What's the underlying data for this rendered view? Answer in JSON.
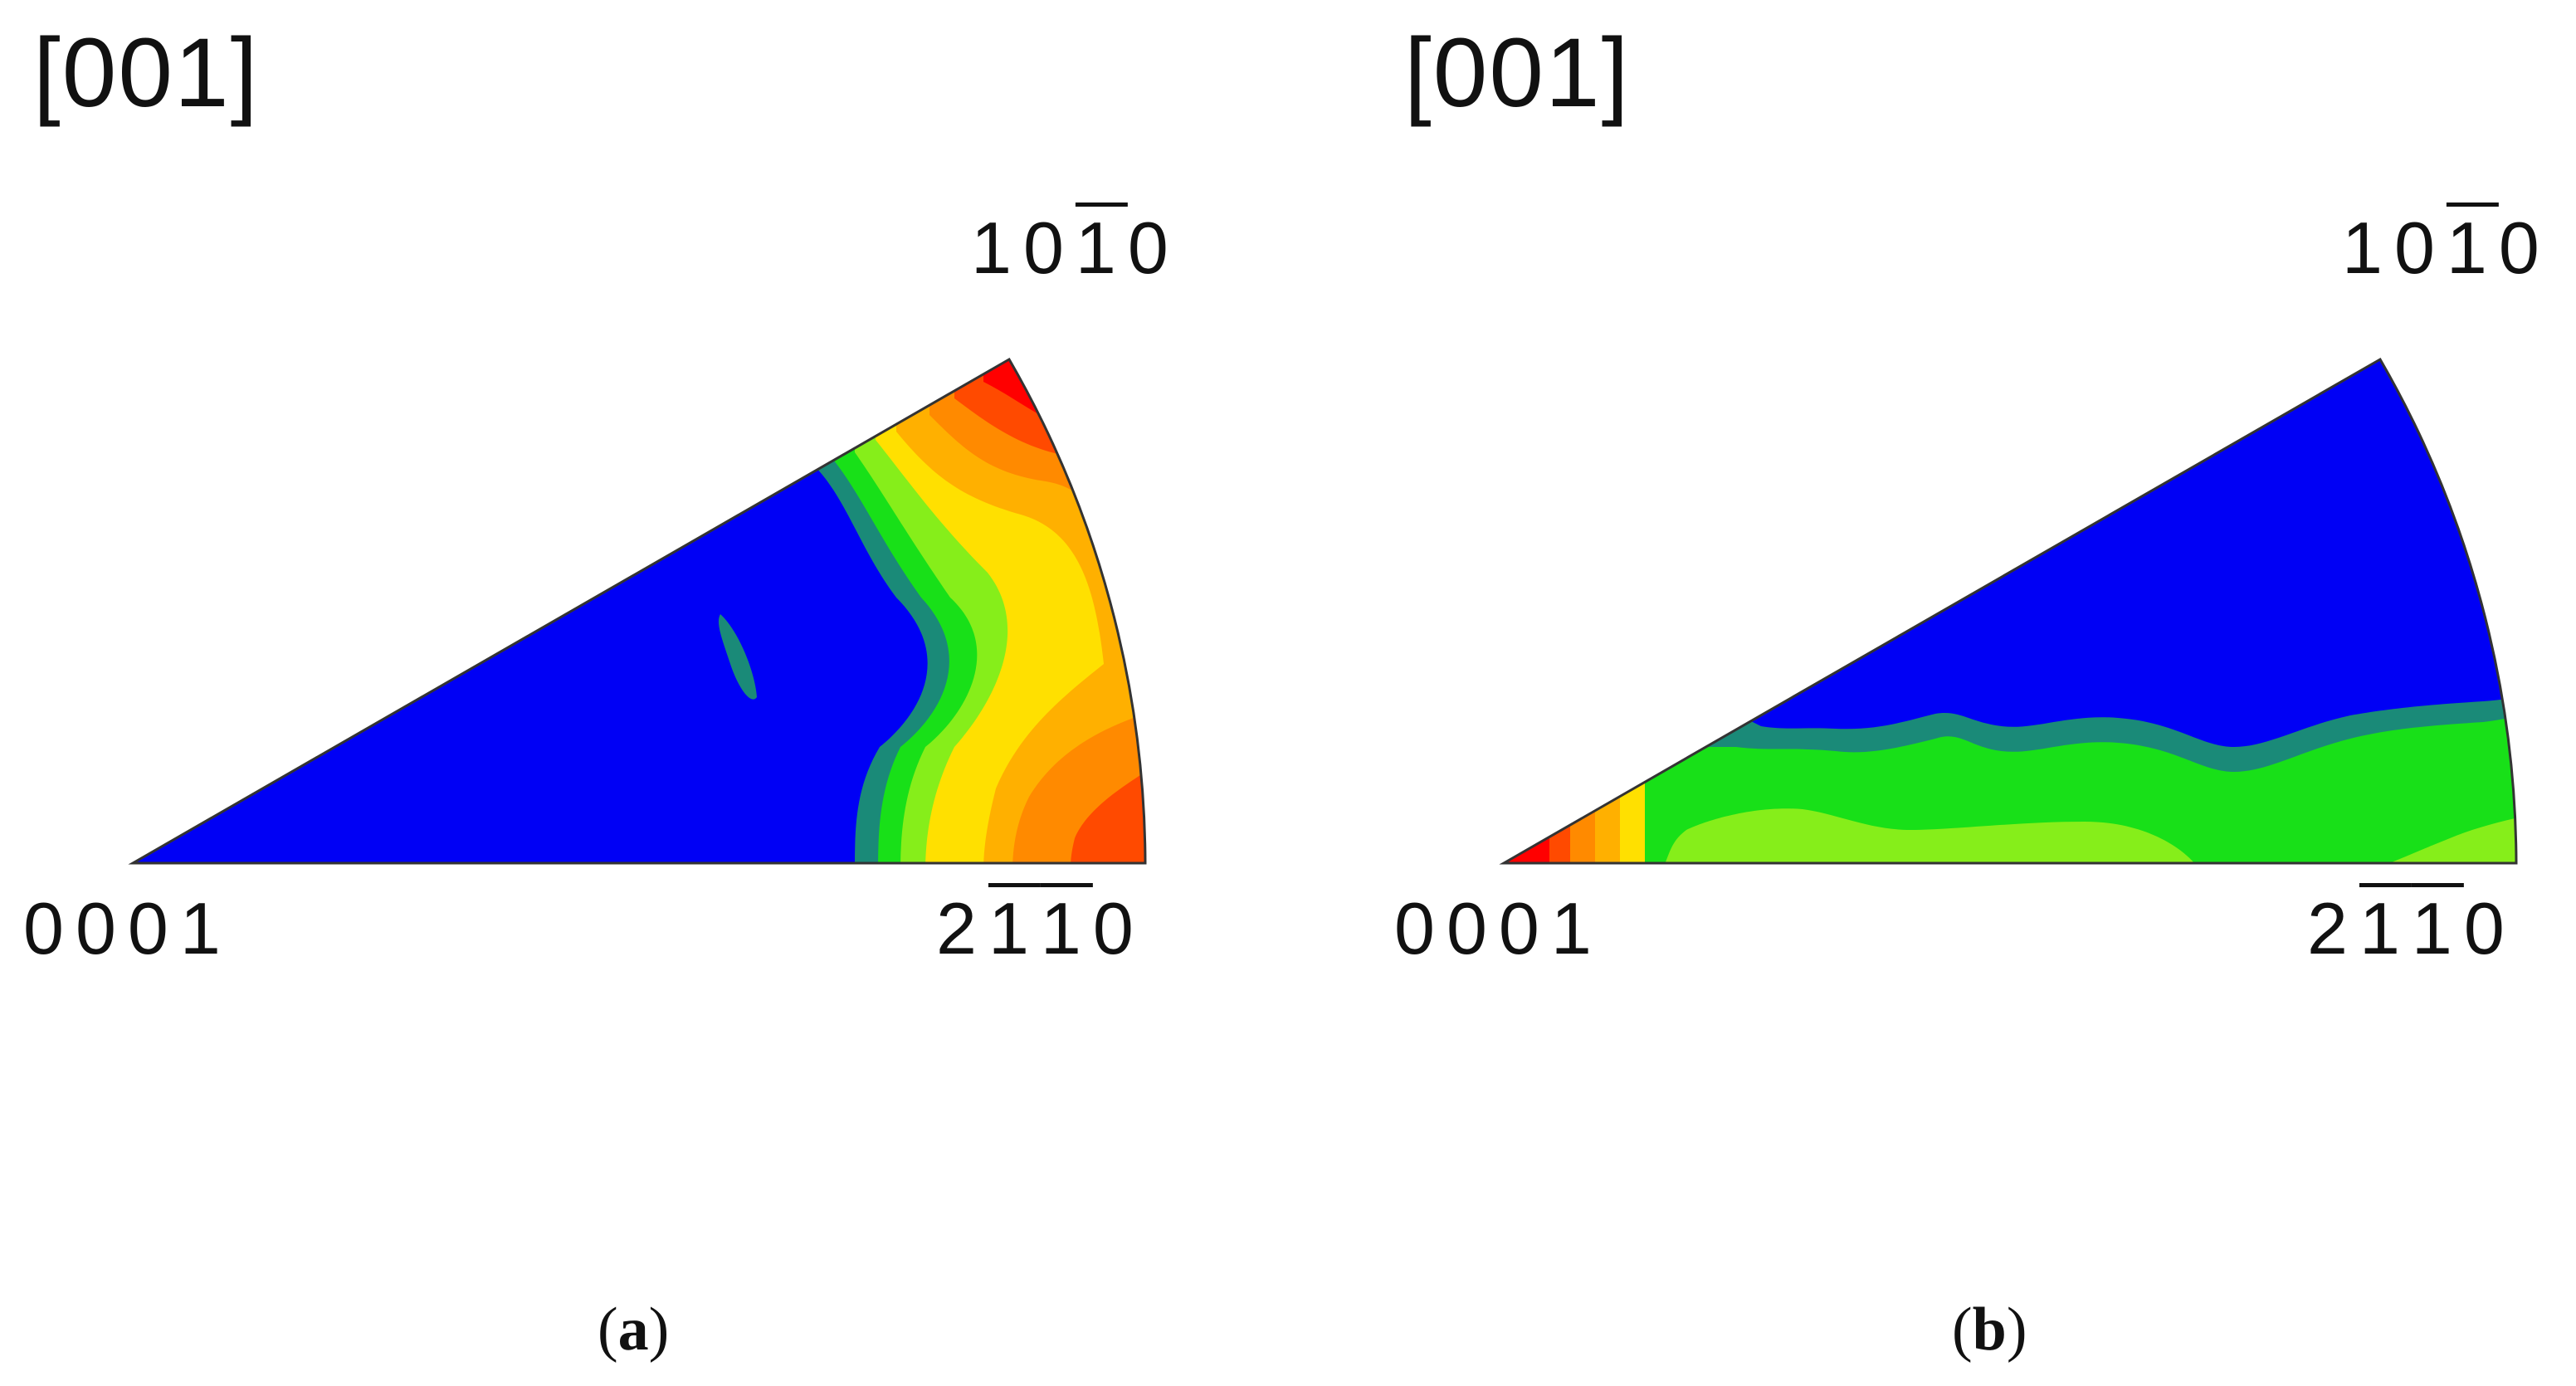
{
  "panels": [
    {
      "id": "a",
      "direction_label": "[001]",
      "caption_letter": "a",
      "poles": {
        "top_right": [
          {
            "d": "1",
            "bar": false
          },
          {
            "d": "0",
            "bar": false
          },
          {
            "d": "1",
            "bar": true
          },
          {
            "d": "0",
            "bar": false
          }
        ],
        "bottom_left": [
          {
            "d": "0",
            "bar": false
          },
          {
            "d": "0",
            "bar": false
          },
          {
            "d": "0",
            "bar": false
          },
          {
            "d": "1",
            "bar": false
          }
        ],
        "bottom_right": [
          {
            "d": "2",
            "bar": false
          },
          {
            "d": "1",
            "bar": true
          },
          {
            "d": "1",
            "bar": true
          },
          {
            "d": "0",
            "bar": false
          }
        ]
      }
    },
    {
      "id": "b",
      "direction_label": "[001]",
      "caption_letter": "b",
      "poles": {
        "top_right": [
          {
            "d": "1",
            "bar": false
          },
          {
            "d": "0",
            "bar": false
          },
          {
            "d": "1",
            "bar": true
          },
          {
            "d": "0",
            "bar": false
          }
        ],
        "bottom_left": [
          {
            "d": "0",
            "bar": false
          },
          {
            "d": "0",
            "bar": false
          },
          {
            "d": "0",
            "bar": false
          },
          {
            "d": "1",
            "bar": false
          }
        ],
        "bottom_right": [
          {
            "d": "2",
            "bar": false
          },
          {
            "d": "1",
            "bar": true
          },
          {
            "d": "1",
            "bar": true
          },
          {
            "d": "0",
            "bar": false
          }
        ]
      }
    }
  ],
  "colors": {
    "blue": "#0000f5",
    "teal": "#1a8a78",
    "green": "#18e018",
    "lime": "#86ee1a",
    "yellow": "#ffe000",
    "amber": "#ffb000",
    "orange": "#ff8a00",
    "red_orange": "#ff4a00",
    "red": "#ff0000",
    "outline": "#333333"
  }
}
